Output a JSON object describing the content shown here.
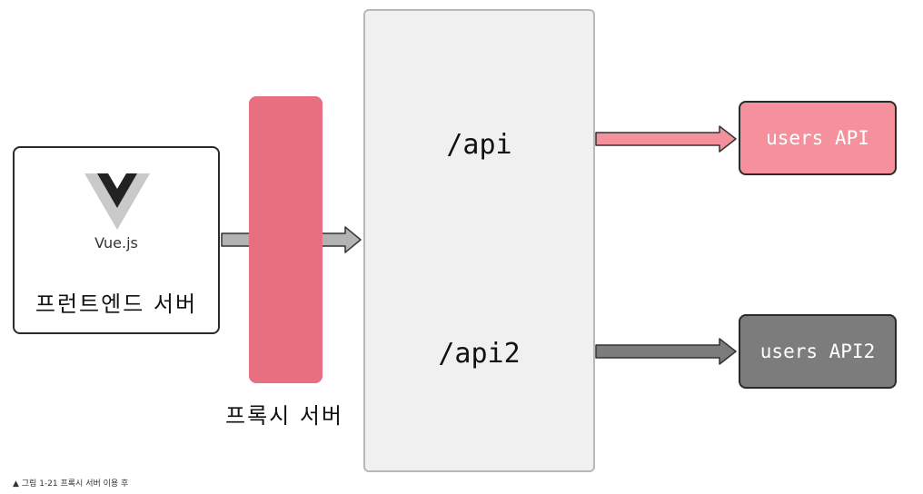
{
  "frontend": {
    "logo_text": "Vue.js",
    "title": "프런트엔드 서버",
    "logo_icon": "vue-logo-icon"
  },
  "proxy": {
    "label": "프록시 서버"
  },
  "server": {
    "routes": [
      "/api",
      "/api2"
    ]
  },
  "apis": {
    "users": "users API",
    "users2": "users API2"
  },
  "caption": "▲ 그림 1-21 프록시 서버 이용 후",
  "colors": {
    "proxy": "#e76f80",
    "users_api": "#f4919c",
    "users_api2": "#7c7c7c",
    "server_panel": "#f0f0f0",
    "arrow_gray": "#b3b3b3",
    "arrow_pink": "#f4919c",
    "arrow_dark": "#7c7c7c"
  }
}
